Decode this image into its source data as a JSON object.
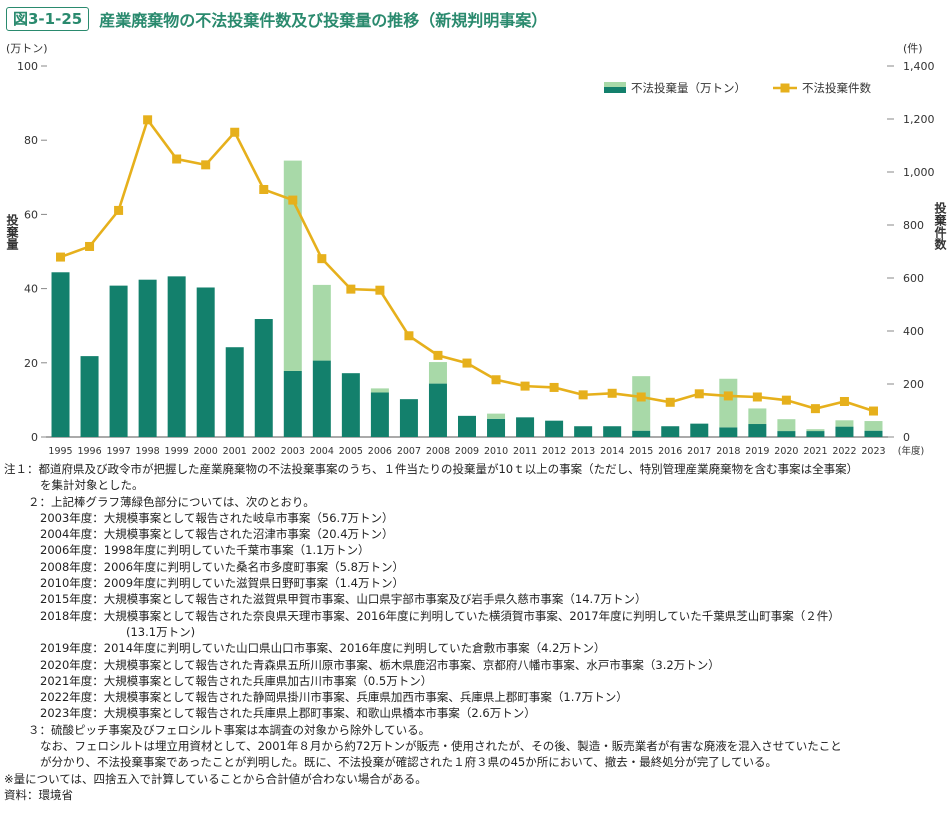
{
  "figure": {
    "label": "図3-1-25",
    "title": "産業廃棄物の不法投棄件数及び投棄量の推移（新規判明事案）"
  },
  "colors": {
    "accent": "#2a8a6e",
    "bar_dark": "#13806c",
    "bar_light": "#a8d9a8",
    "line": "#e6b01c",
    "grid": "#d9d9d9"
  },
  "chart_data": {
    "type": "bar",
    "categories": [
      "1995",
      "1996",
      "1997",
      "1998",
      "1999",
      "2000",
      "2001",
      "2002",
      "2003",
      "2004",
      "2005",
      "2006",
      "2007",
      "2008",
      "2009",
      "2010",
      "2011",
      "2012",
      "2013",
      "2014",
      "2015",
      "2016",
      "2017",
      "2018",
      "2019",
      "2020",
      "2021",
      "2022",
      "2023"
    ],
    "x_unit": "(年度)",
    "y_left": {
      "unit": "(万トン)",
      "label": "投棄量",
      "lim": [
        0,
        100
      ],
      "ticks": [
        "0",
        "20",
        "40",
        "60",
        "80",
        "100"
      ]
    },
    "y_right": {
      "unit": "(件)",
      "label": "投棄件数",
      "lim": [
        0,
        1400
      ],
      "ticks": [
        "0",
        "200",
        "400",
        "600",
        "800",
        "1,000",
        "1,200",
        "1,400"
      ]
    },
    "legend": {
      "position": "top-right",
      "bar_label": "不法投棄量（万トン）",
      "line_label": "不法投棄件数"
    },
    "series": [
      {
        "name": "不法投棄量（万トン）",
        "type": "stacked-bar",
        "axis": "left",
        "base_values": [
          44.4,
          21.8,
          40.8,
          42.4,
          43.3,
          40.3,
          24.2,
          31.8,
          17.8,
          20.6,
          17.2,
          12.0,
          10.2,
          14.4,
          5.7,
          4.9,
          5.3,
          4.4,
          2.9,
          2.9,
          1.7,
          2.9,
          3.6,
          2.6,
          3.5,
          1.6,
          1.6,
          2.8,
          1.7
        ],
        "supplement_values": [
          0,
          0,
          0,
          0,
          0,
          0,
          0,
          0,
          56.7,
          20.4,
          0,
          1.1,
          0,
          5.8,
          0,
          1.4,
          0,
          0,
          0,
          0,
          14.7,
          0,
          0,
          13.1,
          4.2,
          3.2,
          0.5,
          1.7,
          2.6
        ]
      },
      {
        "name": "不法投棄件数",
        "type": "line",
        "axis": "right",
        "values": [
          679,
          719,
          855,
          1197,
          1049,
          1027,
          1150,
          934,
          894,
          673,
          558,
          554,
          382,
          308,
          279,
          216,
          192,
          187,
          159,
          165,
          151,
          131,
          163,
          155,
          151,
          139,
          107,
          134,
          98
        ]
      }
    ]
  },
  "notes": {
    "n1a": "注１：都道府県及び政令市が把握した産業廃棄物の不法投棄事案のうち、１件当たりの投棄量が10ｔ以上の事案（ただし、特別管理産業廃棄物を含む事案は全事案）",
    "n1b": "を集計対象とした。",
    "n2": "２：上記棒グラフ薄緑色部分については、次のとおり。",
    "items": [
      "2003年度：大規模事案として報告された岐阜市事案（56.7万トン）",
      "2004年度：大規模事案として報告された沼津市事案（20.4万トン）",
      "2006年度：1998年度に判明していた千葉市事案（1.1万トン）",
      "2008年度：2006年度に判明していた桑名市多度町事案（5.8万トン）",
      "2010年度：2009年度に判明していた滋賀県日野町事案（1.4万トン）",
      "2015年度：大規模事案として報告された滋賀県甲賀市事案、山口県宇部市事案及び岩手県久慈市事案（14.7万トン）",
      "2018年度：大規模事案として報告された奈良県天理市事案、2016年度に判明していた横須賀市事案、2017年度に判明していた千葉県芝山町事案（２件）"
    ],
    "item2018_cont": "(13.1万トン)",
    "items_after": [
      "2019年度：2014年度に判明していた山口県山口市事案、2016年度に判明していた倉敷市事案（4.2万トン）",
      "2020年度：大規模事案として報告された青森県五所川原市事案、栃木県鹿沼市事案、京都府八幡市事案、水戸市事案（3.2万トン）",
      "2021年度：大規模事案として報告された兵庫県加古川市事案（0.5万トン）",
      "2022年度：大規模事案として報告された静岡県掛川市事案、兵庫県加西市事案、兵庫県上郡町事案（1.7万トン）",
      "2023年度：大規模事案として報告された兵庫県上郡町事案、和歌山県橋本市事案（2.6万トン）"
    ],
    "n3": "３：硫酸ピッチ事案及びフェロシルト事案は本調査の対象から除外している。",
    "n3a": "なお、フェロシルトは埋立用資材として、2001年８月から約72万トンが販売・使用されたが、その後、製造・販売業者が有害な廃液を混入させていたこと",
    "n3b": "が分かり、不法投棄事案であったことが判明した。既に、不法投棄が確認された１府３県の45か所において、撤去・最終処分が完了している。",
    "rounding": "※量については、四捨五入で計算していることから合計値が合わない場合がある。",
    "source": "資料：環境省"
  }
}
